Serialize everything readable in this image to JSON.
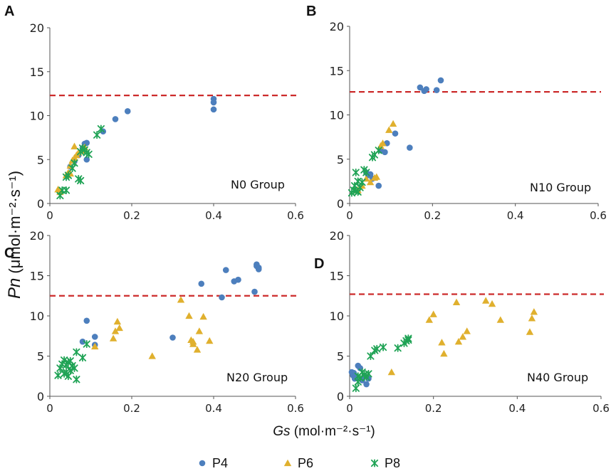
{
  "axis_labels": {
    "y_main": "Pn",
    "y_units": " (μmol·m⁻²·s⁻¹)",
    "x_main": "Gs",
    "x_units": " (mol·m⁻²·s⁻¹)"
  },
  "legend": [
    {
      "name": "P4",
      "marker": "circle",
      "color": "#4d7fbd"
    },
    {
      "name": "P6",
      "marker": "triangle",
      "color": "#e0b02e"
    },
    {
      "name": "P8",
      "marker": "star",
      "color": "#1fa355"
    }
  ],
  "colors": {
    "P4": "#4d7fbd",
    "P6": "#e0b02e",
    "P8": "#1fa355",
    "threshold": "#cc2a2a"
  },
  "chart_data": [
    {
      "type": "scatter",
      "panel": "A",
      "group_label": "N0 Group",
      "xlim": [
        0,
        0.6
      ],
      "ylim": [
        0,
        20
      ],
      "x_ticks": [
        "0",
        "0.2",
        "0.4",
        "0.6"
      ],
      "y_ticks": [
        "0",
        "5",
        "10",
        "15",
        "20"
      ],
      "threshold_y": 12.3,
      "series": [
        {
          "name": "P4",
          "points": [
            [
              0.05,
              4.2
            ],
            [
              0.06,
              4.8
            ],
            [
              0.07,
              5.5
            ],
            [
              0.08,
              6.3
            ],
            [
              0.085,
              6.8
            ],
            [
              0.09,
              6.9
            ],
            [
              0.09,
              5.0
            ],
            [
              0.13,
              8.2
            ],
            [
              0.16,
              9.6
            ],
            [
              0.19,
              10.5
            ],
            [
              0.4,
              11.9
            ],
            [
              0.4,
              11.5
            ],
            [
              0.4,
              10.7
            ]
          ]
        },
        {
          "name": "P6",
          "points": [
            [
              0.02,
              1.6
            ],
            [
              0.025,
              1.3
            ],
            [
              0.04,
              3.2
            ],
            [
              0.045,
              3.5
            ],
            [
              0.05,
              3.4
            ],
            [
              0.05,
              4.3
            ],
            [
              0.055,
              4.9
            ],
            [
              0.06,
              5.2
            ],
            [
              0.06,
              6.5
            ],
            [
              0.065,
              5.5
            ],
            [
              0.07,
              5.8
            ],
            [
              0.08,
              6.0
            ],
            [
              0.085,
              6.4
            ]
          ]
        },
        {
          "name": "P8",
          "points": [
            [
              0.025,
              0.9
            ],
            [
              0.03,
              1.5
            ],
            [
              0.04,
              1.5
            ],
            [
              0.04,
              3.0
            ],
            [
              0.045,
              3.2
            ],
            [
              0.055,
              4.0
            ],
            [
              0.06,
              4.6
            ],
            [
              0.07,
              2.8
            ],
            [
              0.075,
              2.6
            ],
            [
              0.075,
              5.9
            ],
            [
              0.08,
              6.3
            ],
            [
              0.085,
              6.1
            ],
            [
              0.09,
              5.8
            ],
            [
              0.095,
              5.6
            ],
            [
              0.115,
              7.8
            ],
            [
              0.125,
              8.5
            ]
          ]
        }
      ]
    },
    {
      "type": "scatter",
      "panel": "B",
      "group_label": "N10 Group",
      "xlim": [
        0,
        0.6
      ],
      "ylim": [
        0,
        20
      ],
      "x_ticks": [
        "0",
        "0.2",
        "0.4",
        "0.6"
      ],
      "y_ticks": [
        "0",
        "5",
        "10",
        "15",
        "20"
      ],
      "threshold_y": 12.6,
      "series": [
        {
          "name": "P4",
          "points": [
            [
              0.04,
              3.5
            ],
            [
              0.045,
              3.2
            ],
            [
              0.05,
              3.3
            ],
            [
              0.055,
              2.8
            ],
            [
              0.07,
              2.0
            ],
            [
              0.075,
              6.0
            ],
            [
              0.085,
              5.8
            ],
            [
              0.09,
              6.8
            ],
            [
              0.11,
              7.9
            ],
            [
              0.145,
              6.3
            ],
            [
              0.17,
              13.1
            ],
            [
              0.18,
              12.7
            ],
            [
              0.185,
              12.9
            ],
            [
              0.21,
              12.8
            ],
            [
              0.22,
              13.9
            ]
          ]
        },
        {
          "name": "P6",
          "points": [
            [
              0.02,
              1.5
            ],
            [
              0.03,
              2.0
            ],
            [
              0.04,
              2.8
            ],
            [
              0.05,
              2.4
            ],
            [
              0.06,
              2.9
            ],
            [
              0.065,
              3.0
            ],
            [
              0.075,
              6.5
            ],
            [
              0.08,
              6.8
            ],
            [
              0.095,
              8.3
            ],
            [
              0.105,
              9.0
            ]
          ]
        },
        {
          "name": "P8",
          "points": [
            [
              0.005,
              1.2
            ],
            [
              0.01,
              1.5
            ],
            [
              0.012,
              2.0
            ],
            [
              0.015,
              1.4
            ],
            [
              0.015,
              3.5
            ],
            [
              0.02,
              1.3
            ],
            [
              0.02,
              2.5
            ],
            [
              0.025,
              1.8
            ],
            [
              0.03,
              2.4
            ],
            [
              0.035,
              3.8
            ],
            [
              0.04,
              3.5
            ],
            [
              0.055,
              5.2
            ],
            [
              0.06,
              5.5
            ],
            [
              0.07,
              6.0
            ]
          ]
        }
      ]
    },
    {
      "type": "scatter",
      "panel": "C",
      "group_label": "N20 Group",
      "xlim": [
        0,
        0.6
      ],
      "ylim": [
        0,
        20
      ],
      "x_ticks": [
        "0",
        "0.2",
        "0.4",
        "0.6"
      ],
      "y_ticks": [
        "0",
        "5",
        "10",
        "15",
        "20"
      ],
      "threshold_y": 12.5,
      "series": [
        {
          "name": "P4",
          "points": [
            [
              0.08,
              6.8
            ],
            [
              0.09,
              9.4
            ],
            [
              0.11,
              7.4
            ],
            [
              0.11,
              6.4
            ],
            [
              0.3,
              7.3
            ],
            [
              0.37,
              14.0
            ],
            [
              0.42,
              12.3
            ],
            [
              0.43,
              15.7
            ],
            [
              0.45,
              14.3
            ],
            [
              0.46,
              14.5
            ],
            [
              0.5,
              13.0
            ],
            [
              0.505,
              16.2
            ],
            [
              0.505,
              16.4
            ],
            [
              0.51,
              16.0
            ],
            [
              0.51,
              15.8
            ]
          ]
        },
        {
          "name": "P6",
          "points": [
            [
              0.11,
              6.2
            ],
            [
              0.155,
              7.2
            ],
            [
              0.16,
              8.1
            ],
            [
              0.165,
              9.3
            ],
            [
              0.17,
              8.5
            ],
            [
              0.25,
              5.0
            ],
            [
              0.32,
              12.0
            ],
            [
              0.34,
              10.0
            ],
            [
              0.345,
              7.0
            ],
            [
              0.35,
              6.8
            ],
            [
              0.35,
              6.5
            ],
            [
              0.36,
              5.8
            ],
            [
              0.365,
              8.1
            ],
            [
              0.375,
              9.9
            ],
            [
              0.39,
              6.9
            ]
          ]
        },
        {
          "name": "P8",
          "points": [
            [
              0.02,
              2.6
            ],
            [
              0.025,
              3.5
            ],
            [
              0.03,
              4.0
            ],
            [
              0.035,
              2.8
            ],
            [
              0.035,
              4.5
            ],
            [
              0.04,
              3.0
            ],
            [
              0.04,
              3.9
            ],
            [
              0.045,
              2.5
            ],
            [
              0.045,
              4.2
            ],
            [
              0.05,
              3.2
            ],
            [
              0.05,
              4.4
            ],
            [
              0.055,
              3.8
            ],
            [
              0.06,
              3.5
            ],
            [
              0.065,
              2.1
            ],
            [
              0.065,
              5.5
            ],
            [
              0.08,
              4.8
            ],
            [
              0.09,
              6.5
            ]
          ]
        }
      ]
    },
    {
      "type": "scatter",
      "panel": "D",
      "group_label": "N40 Group",
      "xlim": [
        0,
        0.6
      ],
      "ylim": [
        0,
        20
      ],
      "x_ticks": [
        "0",
        "0.2",
        "0.4",
        "0.6"
      ],
      "y_ticks": [
        "0",
        "5",
        "10",
        "15",
        "20"
      ],
      "threshold_y": 12.7,
      "series": [
        {
          "name": "P4",
          "points": [
            [
              0.005,
              3.0
            ],
            [
              0.008,
              2.6
            ],
            [
              0.01,
              2.9
            ],
            [
              0.012,
              2.2
            ],
            [
              0.015,
              2.5
            ],
            [
              0.02,
              3.8
            ],
            [
              0.025,
              3.5
            ],
            [
              0.03,
              2.0
            ],
            [
              0.035,
              2.5
            ],
            [
              0.04,
              1.5
            ],
            [
              0.045,
              2.2
            ]
          ]
        },
        {
          "name": "P6",
          "points": [
            [
              0.1,
              3.0
            ],
            [
              0.19,
              9.5
            ],
            [
              0.2,
              10.2
            ],
            [
              0.22,
              6.7
            ],
            [
              0.225,
              5.3
            ],
            [
              0.255,
              11.7
            ],
            [
              0.26,
              6.8
            ],
            [
              0.27,
              7.4
            ],
            [
              0.28,
              8.1
            ],
            [
              0.325,
              11.9
            ],
            [
              0.34,
              11.5
            ],
            [
              0.36,
              9.5
            ],
            [
              0.43,
              8.0
            ],
            [
              0.435,
              9.7
            ],
            [
              0.44,
              10.5
            ]
          ]
        },
        {
          "name": "P8",
          "points": [
            [
              0.015,
              1.0
            ],
            [
              0.02,
              1.8
            ],
            [
              0.02,
              2.5
            ],
            [
              0.025,
              2.3
            ],
            [
              0.03,
              3.0
            ],
            [
              0.035,
              2.7
            ],
            [
              0.04,
              2.4
            ],
            [
              0.045,
              2.8
            ],
            [
              0.05,
              5.0
            ],
            [
              0.06,
              5.7
            ],
            [
              0.065,
              5.9
            ],
            [
              0.08,
              6.1
            ],
            [
              0.115,
              6.0
            ],
            [
              0.13,
              6.6
            ],
            [
              0.135,
              6.9
            ],
            [
              0.14,
              7.0
            ],
            [
              0.14,
              7.2
            ]
          ]
        }
      ]
    }
  ]
}
